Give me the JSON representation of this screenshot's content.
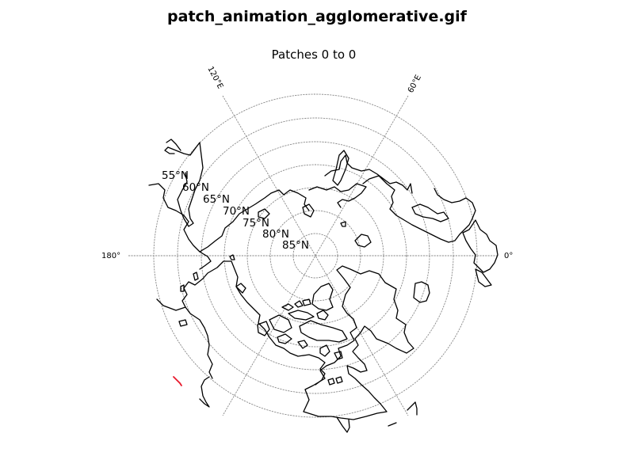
{
  "figure": {
    "title": "patch_animation_agglomerative.gif",
    "subtitle": "Patches 0 to 0"
  },
  "map": {
    "projection": "north-polar-stereographic",
    "latitude_circles": [
      {
        "lat": 85,
        "label": "85°N"
      },
      {
        "lat": 80,
        "label": "80°N"
      },
      {
        "lat": 75,
        "label": "75°N"
      },
      {
        "lat": 70,
        "label": "70°N"
      },
      {
        "lat": 65,
        "label": "65°N"
      },
      {
        "lat": 60,
        "label": "60°N"
      },
      {
        "lat": 55,
        "label": "55°N"
      }
    ],
    "meridian_labels": [
      {
        "lon": 120,
        "label": "120°E"
      },
      {
        "lon": 60,
        "label": "60°E"
      },
      {
        "lon": 180,
        "label": "180°"
      },
      {
        "lon": 0,
        "label": "0°"
      }
    ],
    "coastline_color": "#000000",
    "gridline_color": "#8a8a8a",
    "patch_color": "#e8192c",
    "patch_count": "0 to 0"
  }
}
